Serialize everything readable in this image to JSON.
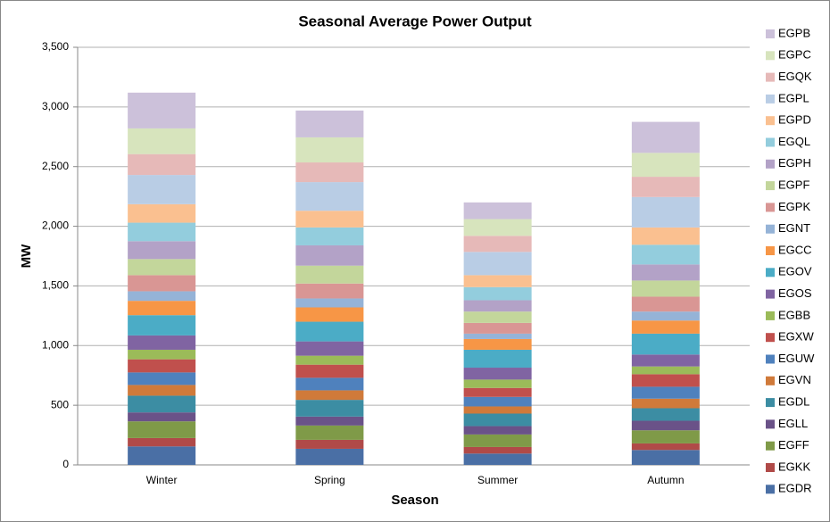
{
  "chart_data": {
    "type": "stacked_bar",
    "title": "Seasonal Average Power Output",
    "x_label": "Season",
    "y_label": "MW",
    "categories": [
      "Winter",
      "Spring",
      "Summer",
      "Autumn"
    ],
    "series": [
      {
        "name": "EGDR",
        "color": "#4a6fa5",
        "values": [
          155,
          135,
          95,
          125
        ]
      },
      {
        "name": "EGKK",
        "color": "#b04a48",
        "values": [
          70,
          75,
          55,
          55
        ]
      },
      {
        "name": "EGFF",
        "color": "#7f9a48",
        "values": [
          140,
          120,
          105,
          110
        ]
      },
      {
        "name": "EGLL",
        "color": "#6a5288",
        "values": [
          75,
          75,
          70,
          80
        ]
      },
      {
        "name": "EGDL",
        "color": "#3c8da3",
        "values": [
          140,
          140,
          105,
          105
        ]
      },
      {
        "name": "EGVN",
        "color": "#d07a3a",
        "values": [
          90,
          80,
          60,
          80
        ]
      },
      {
        "name": "EGUW",
        "color": "#4f81bd",
        "values": [
          105,
          105,
          80,
          100
        ]
      },
      {
        "name": "EGXW",
        "color": "#c0504d",
        "values": [
          110,
          110,
          75,
          105
        ]
      },
      {
        "name": "EGBB",
        "color": "#9bbb59",
        "values": [
          80,
          75,
          70,
          65
        ]
      },
      {
        "name": "EGOS",
        "color": "#8064a2",
        "values": [
          120,
          120,
          100,
          100
        ]
      },
      {
        "name": "EGOV",
        "color": "#4bacc6",
        "values": [
          170,
          165,
          150,
          175
        ]
      },
      {
        "name": "EGCC",
        "color": "#f79646",
        "values": [
          120,
          120,
          90,
          110
        ]
      },
      {
        "name": "EGNT",
        "color": "#95b3d7",
        "values": [
          80,
          75,
          45,
          75
        ]
      },
      {
        "name": "EGPK",
        "color": "#d99694",
        "values": [
          135,
          125,
          90,
          125
        ]
      },
      {
        "name": "EGPF",
        "color": "#c3d69b",
        "values": [
          135,
          150,
          95,
          135
        ]
      },
      {
        "name": "EGPH",
        "color": "#b3a2c7",
        "values": [
          150,
          170,
          95,
          135
        ]
      },
      {
        "name": "EGQL",
        "color": "#93cddd",
        "values": [
          155,
          150,
          110,
          165
        ]
      },
      {
        "name": "EGPD",
        "color": "#fac090",
        "values": [
          155,
          140,
          100,
          145
        ]
      },
      {
        "name": "EGPL",
        "color": "#b9cde5",
        "values": [
          245,
          240,
          195,
          255
        ]
      },
      {
        "name": "EGQK",
        "color": "#e6b9b8",
        "values": [
          175,
          165,
          135,
          170
        ]
      },
      {
        "name": "EGPC",
        "color": "#d7e4bd",
        "values": [
          215,
          210,
          140,
          200
        ]
      },
      {
        "name": "EGPB",
        "color": "#ccc1da",
        "values": [
          300,
          225,
          140,
          260
        ]
      }
    ],
    "ylim": [
      0,
      3500
    ],
    "yticks": [
      0,
      {
        "value": 500,
        "label": "500"
      },
      {
        "value": 1000,
        "label": "1,000"
      },
      {
        "value": 1500,
        "label": "1,500"
      },
      {
        "value": 2000,
        "label": "2,000"
      },
      {
        "value": 2500,
        "label": "2,500"
      },
      {
        "value": 3000,
        "label": "3,000"
      },
      {
        "value": 3500,
        "label": "3,500"
      }
    ],
    "grid": true
  }
}
